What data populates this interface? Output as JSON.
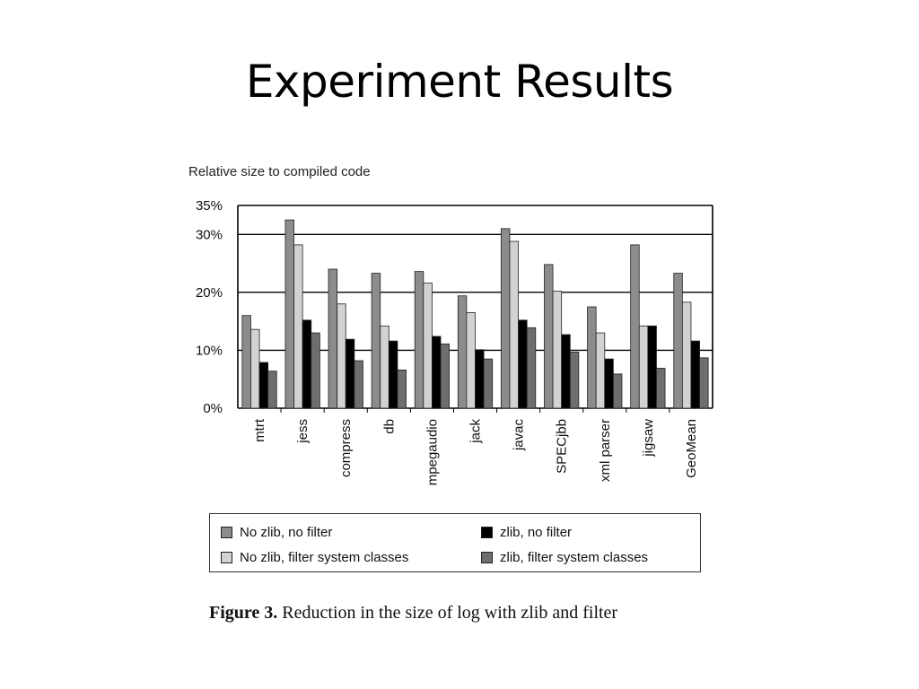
{
  "slide": {
    "title": "Experiment Results"
  },
  "chart_data": {
    "type": "bar",
    "ylabel": "Relative size to compiled code",
    "ylim": [
      0,
      35
    ],
    "yticks": [
      "0%",
      "10%",
      "20%",
      "30%",
      "35%"
    ],
    "ytick_values": [
      0,
      10,
      20,
      30,
      35
    ],
    "grid": true,
    "legend_position": "bottom",
    "categories": [
      "mtrt",
      "jess",
      "compress",
      "db",
      "mpegaudio",
      "jack",
      "javac",
      "SPECjbb",
      "xml parser",
      "jigsaw",
      "GeoMean"
    ],
    "series": [
      {
        "name": "No zlib, no filter",
        "color": "#8c8c8c",
        "values": [
          16,
          32.5,
          24,
          23.3,
          23.6,
          19.4,
          31,
          24.8,
          17.5,
          28.2,
          23.3
        ]
      },
      {
        "name": "No zlib, filter system classes",
        "color": "#d2d2d2",
        "values": [
          13.6,
          28.2,
          18,
          14.2,
          21.6,
          16.5,
          28.8,
          20.2,
          13,
          14.2,
          18.3
        ]
      },
      {
        "name": "zlib, no filter",
        "color": "#000000",
        "values": [
          7.9,
          15.2,
          11.9,
          11.6,
          12.4,
          10.1,
          15.2,
          12.7,
          8.5,
          14.2,
          11.6
        ]
      },
      {
        "name": "zlib, filter system classes",
        "color": "#6e6e6e",
        "values": [
          6.4,
          13,
          8.2,
          6.6,
          11.1,
          8.5,
          13.9,
          9.7,
          5.9,
          6.9,
          8.7
        ]
      }
    ]
  },
  "caption": {
    "label": "Figure 3.",
    "text": " Reduction in the size of log with zlib and filter"
  }
}
